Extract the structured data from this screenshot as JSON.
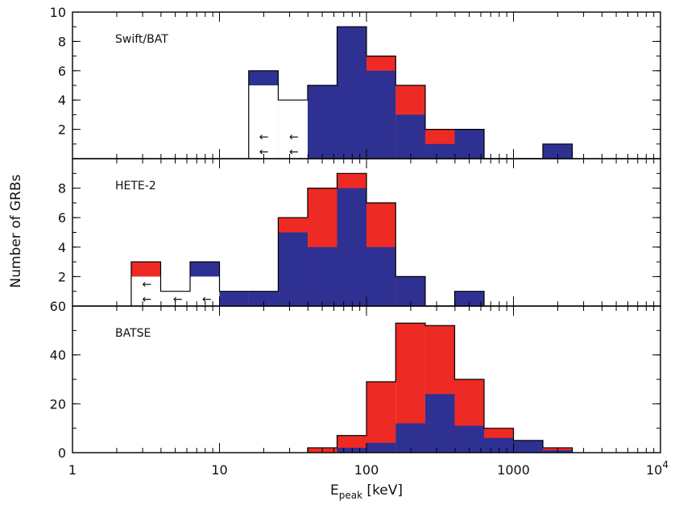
{
  "chart_data": {
    "type": "bar",
    "xlabel_main": "E",
    "xlabel_sub": "peak",
    "xlabel_unit": " [keV]",
    "ylabel": "Number of GRBs",
    "xscale": "log",
    "xlim": [
      1,
      10000
    ],
    "xticks": [
      {
        "value": 1,
        "label": "1"
      },
      {
        "value": 10,
        "label": "10"
      },
      {
        "value": 100,
        "label": "100"
      },
      {
        "value": 1000,
        "label": "1000"
      }
    ],
    "xtick_last": {
      "base": "10",
      "exp": "4",
      "value": 10000
    },
    "colors": {
      "red": "#ee2a24",
      "blue": "#2e3192"
    },
    "panels": [
      {
        "label": "Swift/BAT",
        "ylim": [
          0,
          10
        ],
        "yticks": [
          {
            "value": 2,
            "label": "2"
          },
          {
            "value": 4,
            "label": "4"
          },
          {
            "value": 6,
            "label": "6"
          },
          {
            "value": 8,
            "label": "8"
          },
          {
            "value": 10,
            "label": "10"
          }
        ],
        "bin_edges": [
          15.8,
          25.1,
          39.8,
          63.1,
          100,
          158,
          251,
          398,
          631,
          1000,
          1585,
          2512
        ],
        "red": [
          6,
          4,
          5,
          9,
          7,
          5,
          2,
          2,
          0,
          0,
          1
        ],
        "blue": [
          6,
          0,
          5,
          9,
          6,
          3,
          1,
          2,
          0,
          0,
          1
        ],
        "upper_limits": [
          5,
          4,
          0,
          0,
          0,
          0,
          0,
          0,
          0,
          0,
          0
        ],
        "arrows": [
          {
            "x": 20,
            "y": 1.5,
            "label": "←"
          },
          {
            "x": 32,
            "y": 1.5,
            "label": "←"
          },
          {
            "x": 20,
            "y": 0.5,
            "label": "←"
          },
          {
            "x": 32,
            "y": 0.5,
            "label": "←"
          }
        ]
      },
      {
        "label": "HETE-2",
        "ylim": [
          0,
          10
        ],
        "yticks": [
          {
            "value": 2,
            "label": "2"
          },
          {
            "value": 4,
            "label": "4"
          },
          {
            "value": 6,
            "label": "6"
          },
          {
            "value": 8,
            "label": "8"
          }
        ],
        "bin_edges": [
          2.51,
          3.98,
          6.31,
          10,
          15.8,
          25.1,
          39.8,
          63.1,
          100,
          158,
          251,
          398,
          631
        ],
        "red": [
          3,
          0,
          3,
          1,
          1,
          6,
          8,
          9,
          7,
          2,
          0,
          1
        ],
        "blue": [
          2,
          0,
          3,
          1,
          1,
          5,
          4,
          8,
          4,
          2,
          0,
          1
        ],
        "upper_limits": [
          2,
          1,
          2,
          0,
          0,
          0,
          0,
          0,
          0,
          0,
          0,
          0
        ],
        "arrows": [
          {
            "x": 3.2,
            "y": 1.5,
            "label": "←"
          },
          {
            "x": 3.2,
            "y": 0.5,
            "label": "←"
          },
          {
            "x": 5.2,
            "y": 0.5,
            "label": "←"
          },
          {
            "x": 8.2,
            "y": 0.5,
            "label": "←"
          }
        ]
      },
      {
        "label": "BATSE",
        "ylim": [
          0,
          60
        ],
        "yticks": [
          {
            "value": 0,
            "label": "0"
          },
          {
            "value": 20,
            "label": "20"
          },
          {
            "value": 40,
            "label": "40"
          },
          {
            "value": 60,
            "label": "60"
          }
        ],
        "bin_edges": [
          39.8,
          63.1,
          100,
          158,
          251,
          398,
          631,
          1000,
          1585,
          2512
        ],
        "red": [
          2,
          7,
          29,
          53,
          52,
          30,
          10,
          5,
          2
        ],
        "blue": [
          0,
          2,
          4,
          12,
          24,
          11,
          6,
          5,
          1
        ],
        "upper_limits": [],
        "arrows": []
      }
    ]
  }
}
